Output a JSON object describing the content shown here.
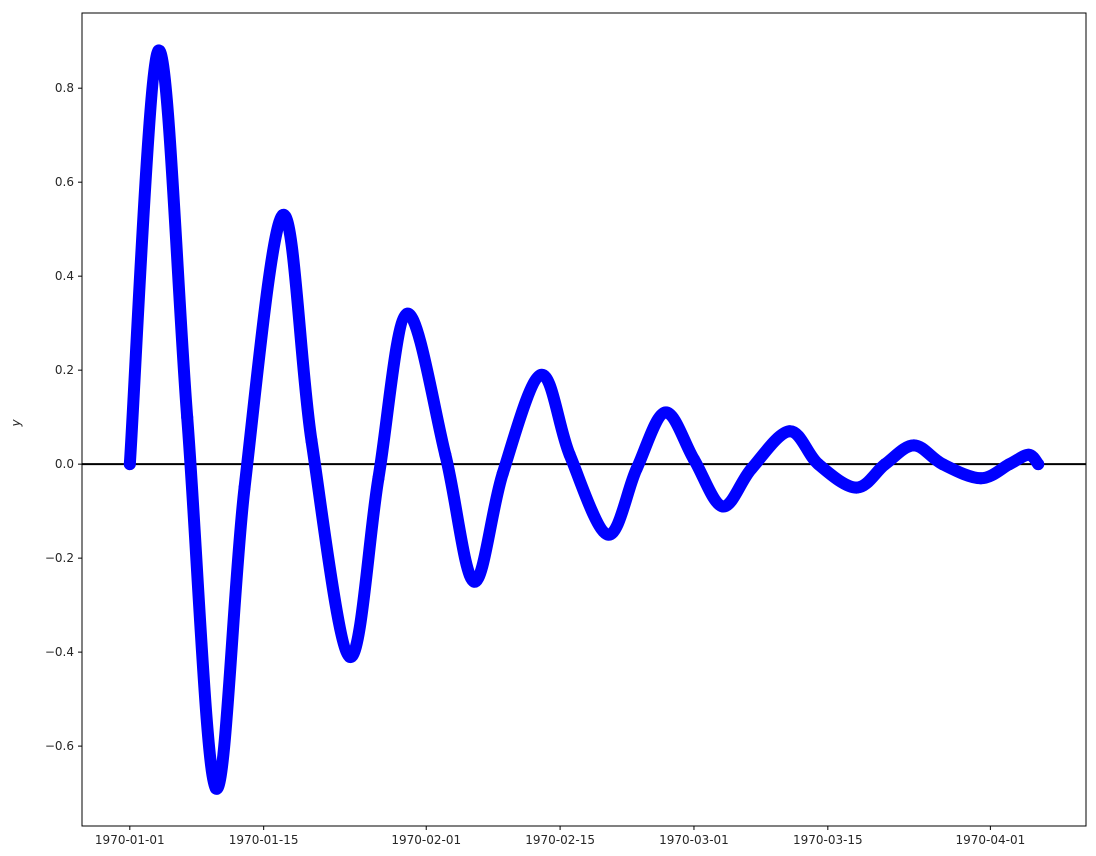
{
  "chart_data": {
    "type": "scatter",
    "title": "",
    "xlabel": "",
    "ylabel": "y",
    "x_axis_type": "date",
    "xlim": [
      "1969-12-27",
      "1970-04-11"
    ],
    "ylim": [
      -0.77,
      0.96
    ],
    "x_ticks": [
      "1970-01-01",
      "1970-01-15",
      "1970-02-01",
      "1970-02-15",
      "1970-03-01",
      "1970-03-15",
      "1970-04-01"
    ],
    "y_ticks": [
      -0.6,
      -0.4,
      -0.2,
      0.0,
      0.2,
      0.4,
      0.6,
      0.8
    ],
    "y_tick_labels": [
      "−0.6",
      "−0.4",
      "−0.2",
      "0.0",
      "0.2",
      "0.4",
      "0.6",
      "0.8"
    ],
    "grid": false,
    "legend": "none",
    "reference_line": {
      "y": 0.0,
      "color": "#000000"
    },
    "series": [
      {
        "color": "#0000ff",
        "x_start": "1970-01-01",
        "x_end": "1970-04-05",
        "points": [
          {
            "x": "1970-01-01",
            "y": 0.0
          },
          {
            "x": "1970-01-04",
            "y": 0.88
          },
          {
            "x": "1970-01-07",
            "y": 0.1
          },
          {
            "x": "1970-01-10",
            "y": -0.69
          },
          {
            "x": "1970-01-13",
            "y": -0.05
          },
          {
            "x": "1970-01-17",
            "y": 0.53
          },
          {
            "x": "1970-01-20",
            "y": 0.05
          },
          {
            "x": "1970-01-24",
            "y": -0.41
          },
          {
            "x": "1970-01-27",
            "y": -0.03
          },
          {
            "x": "1970-01-30",
            "y": 0.32
          },
          {
            "x": "1970-02-03",
            "y": 0.02
          },
          {
            "x": "1970-02-06",
            "y": -0.25
          },
          {
            "x": "1970-02-09",
            "y": -0.02
          },
          {
            "x": "1970-02-13",
            "y": 0.19
          },
          {
            "x": "1970-02-16",
            "y": 0.02
          },
          {
            "x": "1970-02-20",
            "y": -0.15
          },
          {
            "x": "1970-02-23",
            "y": -0.01
          },
          {
            "x": "1970-02-26",
            "y": 0.11
          },
          {
            "x": "1970-03-01",
            "y": 0.01
          },
          {
            "x": "1970-03-04",
            "y": -0.09
          },
          {
            "x": "1970-03-07",
            "y": -0.01
          },
          {
            "x": "1970-03-11",
            "y": 0.07
          },
          {
            "x": "1970-03-14",
            "y": 0.0
          },
          {
            "x": "1970-03-18",
            "y": -0.05
          },
          {
            "x": "1970-03-21",
            "y": 0.0
          },
          {
            "x": "1970-03-24",
            "y": 0.04
          },
          {
            "x": "1970-03-27",
            "y": 0.0
          },
          {
            "x": "1970-03-31",
            "y": -0.03
          },
          {
            "x": "1970-04-03",
            "y": 0.0
          },
          {
            "x": "1970-04-05",
            "y": 0.02
          },
          {
            "x": "1970-04-06",
            "y": 0.0
          }
        ]
      }
    ]
  }
}
